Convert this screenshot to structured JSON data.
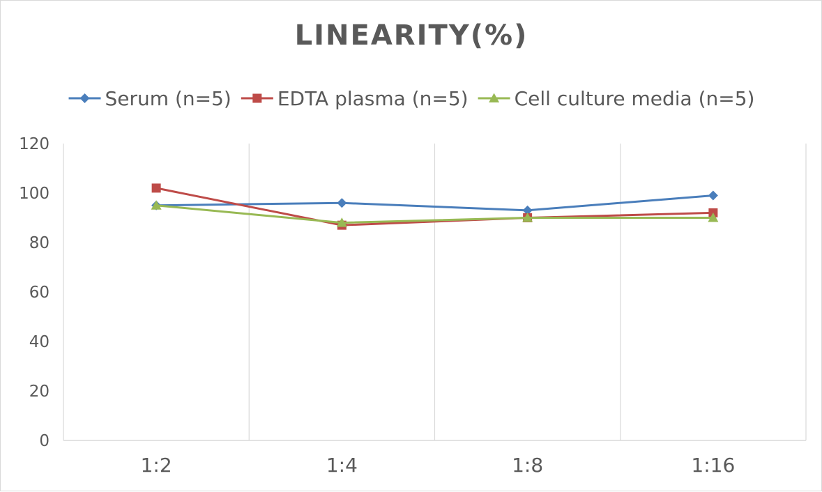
{
  "chart_data": {
    "type": "line",
    "title": "LINEARITY(%)",
    "xlabel": "",
    "ylabel": "",
    "categories": [
      "1:2",
      "1:4",
      "1:8",
      "1:16"
    ],
    "ylim": [
      0,
      120
    ],
    "yticks": [
      0,
      20,
      40,
      60,
      80,
      100,
      120
    ],
    "grid": "vertical",
    "legend_position": "top",
    "series": [
      {
        "name": "Serum (n=5)",
        "values": [
          95,
          96,
          93,
          99
        ],
        "color": "#4a7ebb",
        "marker": "diamond"
      },
      {
        "name": "EDTA plasma (n=5)",
        "values": [
          102,
          87,
          90,
          92
        ],
        "color": "#be4b48",
        "marker": "square"
      },
      {
        "name": "Cell culture media (n=5)",
        "values": [
          95,
          88,
          90,
          90
        ],
        "color": "#98b954",
        "marker": "triangle"
      }
    ]
  }
}
